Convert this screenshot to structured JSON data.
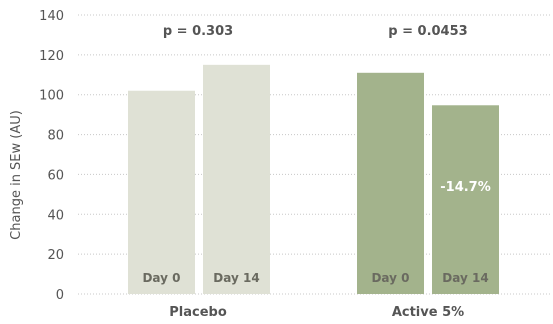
{
  "chart_data": {
    "type": "bar",
    "ylabel": "Change in SEw (AU)",
    "ylim": [
      0,
      140
    ],
    "yticks": [
      0,
      20,
      40,
      60,
      80,
      100,
      120,
      140
    ],
    "grid": true,
    "groups": [
      {
        "name": "Placebo",
        "p_value": "p = 0.303",
        "bars": [
          {
            "label": "Day 0",
            "value": 102
          },
          {
            "label": "Day 14",
            "value": 115
          }
        ]
      },
      {
        "name": "Active 5%",
        "p_value": "p = 0.0453",
        "bars": [
          {
            "label": "Day 0",
            "value": 111
          },
          {
            "label": "Day 14",
            "value": 94.7,
            "annotation": "-14.7%"
          }
        ]
      }
    ],
    "colors": {
      "placebo": "#dfe1d5",
      "active": "#a3b38c"
    }
  }
}
